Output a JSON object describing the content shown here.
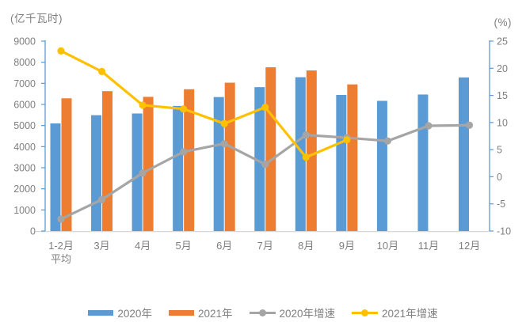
{
  "chart_data": {
    "type": "bar+line",
    "left_axis": {
      "title": "(亿千瓦时)",
      "min": 0,
      "max": 9000,
      "tick_step": 1000
    },
    "right_axis": {
      "title": "(%)",
      "min": -10,
      "max": 25,
      "tick_step": 5
    },
    "categories": [
      "1-2月\n平均",
      "3月",
      "4月",
      "5月",
      "6月",
      "7月",
      "8月",
      "9月",
      "10月",
      "11月",
      "12月"
    ],
    "series": [
      {
        "name": "2020年",
        "type": "bar",
        "axis": "left",
        "color": "#5B9BD5",
        "values": [
          5100,
          5490,
          5570,
          5930,
          6350,
          6820,
          7290,
          6450,
          6170,
          6470,
          7280
        ]
      },
      {
        "name": "2021年",
        "type": "bar",
        "axis": "left",
        "color": "#ED7D31",
        "values": [
          6290,
          6630,
          6360,
          6720,
          7030,
          7760,
          7610,
          6950,
          null,
          null,
          null
        ]
      },
      {
        "name": "2020年增速",
        "type": "line",
        "axis": "right",
        "color": "#A5A5A5",
        "values": [
          -7.8,
          -4.2,
          0.7,
          4.6,
          6.1,
          2.3,
          7.7,
          7.2,
          6.6,
          9.4,
          9.5
        ]
      },
      {
        "name": "2021年增速",
        "type": "line",
        "axis": "right",
        "color": "#FFC000",
        "values": [
          23.2,
          19.4,
          13.2,
          12.5,
          9.8,
          12.8,
          3.6,
          6.8,
          null,
          null,
          null
        ]
      }
    ],
    "legend_position": "bottom",
    "grid": "off",
    "colors": {
      "axis_line": "#5B9BD5",
      "x_axis_line": "#d6d6d6",
      "text": "#7f7f7f"
    }
  }
}
